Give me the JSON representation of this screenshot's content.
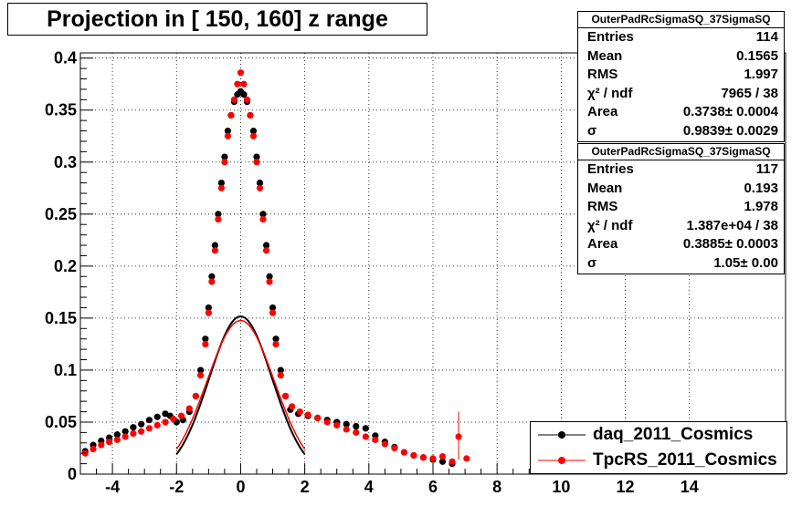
{
  "title": "Projection in [ 150, 160] z range",
  "stat_boxes": [
    {
      "name": "OuterPadRcSigmaSQ_37SigmaSQ",
      "rows": [
        {
          "k": "Entries",
          "v": "114"
        },
        {
          "k": "Mean",
          "v": "0.1565"
        },
        {
          "k": "RMS",
          "v": "1.997"
        },
        {
          "k": "χ² / ndf",
          "v": "7965 / 38"
        },
        {
          "k": "Area",
          "v": "0.3738± 0.0004"
        },
        {
          "k": "σ",
          "v": "0.9839± 0.0029"
        }
      ]
    },
    {
      "name": "OuterPadRcSigmaSQ_37SigmaSQ",
      "rows": [
        {
          "k": "Entries",
          "v": "117"
        },
        {
          "k": "Mean",
          "v": "0.193"
        },
        {
          "k": "RMS",
          "v": "1.978"
        },
        {
          "k": "χ² / ndf",
          "v": "1.387e+04 / 38"
        },
        {
          "k": "Area",
          "v": "0.3885± 0.0003"
        },
        {
          "k": "σ",
          "v": "1.05± 0.00"
        }
      ]
    }
  ],
  "legend": [
    {
      "label": "daq_2011_Cosmics",
      "color": "#000000"
    },
    {
      "label": "TpcRS_2011_Cosmics",
      "color": "#ff0000"
    }
  ],
  "chart_data": {
    "type": "scatter",
    "xlim": [
      -5,
      17
    ],
    "ylim": [
      0,
      0.405
    ],
    "x_ticks": [
      "-4",
      "-2",
      "0",
      "2",
      "4",
      "6",
      "8",
      "10",
      "12",
      "14"
    ],
    "x_tick_values": [
      -4,
      -2,
      0,
      2,
      4,
      6,
      8,
      10,
      12,
      14
    ],
    "y_ticks": [
      "0",
      "0.05",
      "0.1",
      "0.15",
      "0.2",
      "0.25",
      "0.3",
      "0.35",
      "0.4"
    ],
    "y_tick_values": [
      0,
      0.05,
      0.1,
      0.15,
      0.2,
      0.25,
      0.3,
      0.35,
      0.4
    ],
    "grid": true,
    "legend_position": "bottom-right",
    "series": [
      {
        "name": "daq_2011_Cosmics",
        "color": "#000000",
        "points": [
          [
            -4.85,
            0.022
          ],
          [
            -4.6,
            0.028
          ],
          [
            -4.35,
            0.032
          ],
          [
            -4.1,
            0.035
          ],
          [
            -3.85,
            0.038
          ],
          [
            -3.6,
            0.041
          ],
          [
            -3.35,
            0.045
          ],
          [
            -3.1,
            0.048
          ],
          [
            -2.85,
            0.052
          ],
          [
            -2.6,
            0.055
          ],
          [
            -2.35,
            0.058
          ],
          [
            -2.2,
            0.056
          ],
          [
            -2.0,
            0.05
          ],
          [
            -1.8,
            0.052
          ],
          [
            -1.6,
            0.06
          ],
          [
            -1.4,
            0.075
          ],
          [
            -1.25,
            0.1
          ],
          [
            -1.1,
            0.13
          ],
          [
            -1.0,
            0.16
          ],
          [
            -0.9,
            0.19
          ],
          [
            -0.8,
            0.22
          ],
          [
            -0.7,
            0.25
          ],
          [
            -0.6,
            0.28
          ],
          [
            -0.5,
            0.305
          ],
          [
            -0.4,
            0.33
          ],
          [
            -0.3,
            0.345
          ],
          [
            -0.2,
            0.358
          ],
          [
            -0.1,
            0.365
          ],
          [
            0.0,
            0.368
          ],
          [
            0.1,
            0.365
          ],
          [
            0.2,
            0.358
          ],
          [
            0.3,
            0.345
          ],
          [
            0.4,
            0.33
          ],
          [
            0.5,
            0.305
          ],
          [
            0.6,
            0.28
          ],
          [
            0.7,
            0.25
          ],
          [
            0.8,
            0.22
          ],
          [
            0.9,
            0.19
          ],
          [
            1.0,
            0.16
          ],
          [
            1.1,
            0.13
          ],
          [
            1.25,
            0.1
          ],
          [
            1.4,
            0.075
          ],
          [
            1.55,
            0.062
          ],
          [
            1.8,
            0.058
          ],
          [
            2.1,
            0.056
          ],
          [
            2.4,
            0.054
          ],
          [
            2.7,
            0.052
          ],
          [
            3.0,
            0.05
          ],
          [
            3.3,
            0.048
          ],
          [
            3.6,
            0.046
          ],
          [
            3.9,
            0.044
          ],
          [
            4.2,
            0.037
          ],
          [
            4.5,
            0.031
          ],
          [
            4.8,
            0.026
          ],
          [
            5.1,
            0.021
          ],
          [
            5.4,
            0.018
          ],
          [
            5.7,
            0.016
          ],
          [
            6.0,
            0.014
          ],
          [
            6.3,
            0.012
          ],
          [
            6.6,
            0.01
          ]
        ],
        "fit": {
          "type": "gaussian",
          "area": 0.3738,
          "sigma": 0.9839
        }
      },
      {
        "name": "TpcRS_2011_Cosmics",
        "color": "#ff0000",
        "points": [
          [
            -4.85,
            0.02
          ],
          [
            -4.6,
            0.024
          ],
          [
            -4.35,
            0.028
          ],
          [
            -4.1,
            0.031
          ],
          [
            -3.85,
            0.033
          ],
          [
            -3.6,
            0.036
          ],
          [
            -3.35,
            0.039
          ],
          [
            -3.1,
            0.041
          ],
          [
            -2.85,
            0.044
          ],
          [
            -2.6,
            0.047
          ],
          [
            -2.35,
            0.05
          ],
          [
            -2.1,
            0.053
          ],
          [
            -1.85,
            0.056
          ],
          [
            -1.6,
            0.063
          ],
          [
            -1.4,
            0.075
          ],
          [
            -1.25,
            0.095
          ],
          [
            -1.1,
            0.125
          ],
          [
            -1.0,
            0.155
          ],
          [
            -0.9,
            0.185
          ],
          [
            -0.8,
            0.215
          ],
          [
            -0.7,
            0.245
          ],
          [
            -0.6,
            0.275
          ],
          [
            -0.5,
            0.3
          ],
          [
            -0.4,
            0.325
          ],
          [
            -0.3,
            0.345
          ],
          [
            -0.2,
            0.36
          ],
          [
            -0.1,
            0.375
          ],
          [
            0.0,
            0.386
          ],
          [
            0.1,
            0.375
          ],
          [
            0.2,
            0.36
          ],
          [
            0.3,
            0.345
          ],
          [
            0.4,
            0.325
          ],
          [
            0.5,
            0.3
          ],
          [
            0.6,
            0.275
          ],
          [
            0.7,
            0.245
          ],
          [
            0.8,
            0.215
          ],
          [
            0.9,
            0.185
          ],
          [
            1.0,
            0.155
          ],
          [
            1.1,
            0.125
          ],
          [
            1.25,
            0.095
          ],
          [
            1.4,
            0.075
          ],
          [
            1.6,
            0.065
          ],
          [
            1.85,
            0.06
          ],
          [
            2.1,
            0.057
          ],
          [
            2.4,
            0.054
          ],
          [
            2.7,
            0.05
          ],
          [
            3.0,
            0.047
          ],
          [
            3.3,
            0.043
          ],
          [
            3.6,
            0.04
          ],
          [
            3.9,
            0.036
          ],
          [
            4.2,
            0.033
          ],
          [
            4.5,
            0.029
          ],
          [
            4.8,
            0.025
          ],
          [
            5.1,
            0.021
          ],
          [
            5.4,
            0.018
          ],
          [
            5.7,
            0.016
          ],
          [
            6.0,
            0.015
          ],
          [
            6.3,
            0.017
          ],
          [
            6.6,
            0.012
          ],
          [
            6.8,
            0.036
          ],
          [
            7.05,
            0.015
          ]
        ],
        "fit": {
          "type": "gaussian",
          "area": 0.3885,
          "sigma": 1.05
        }
      }
    ]
  }
}
